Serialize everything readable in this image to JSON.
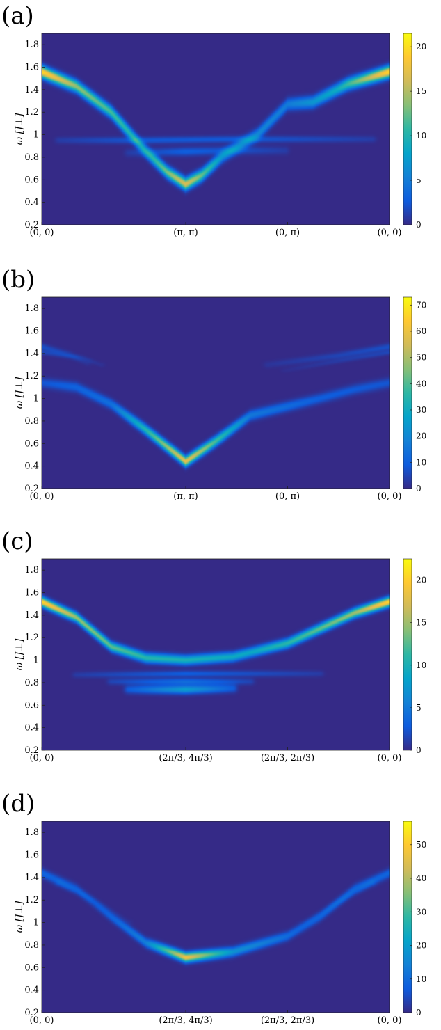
{
  "colormap": {
    "name": "parula",
    "stops": [
      "#352a87",
      "#0f5cdd",
      "#1481d6",
      "#06a4ca",
      "#2eb7a4",
      "#87bf77",
      "#d1bb59",
      "#fec832",
      "#f9fb0e"
    ]
  },
  "chart_data": [
    {
      "type": "heatmap",
      "panel_label": "(a)",
      "ylabel": "ω [J⊥]",
      "ylim": [
        0.2,
        1.9
      ],
      "yticks": [
        "0.2",
        "0.4",
        "0.6",
        "0.8",
        "1",
        "1.2",
        "1.4",
        "1.6",
        "1.8"
      ],
      "xticks": [
        {
          "label": "(0, 0)",
          "k": 0
        },
        {
          "label": "(π, π)",
          "k": 0.414
        },
        {
          "label": "(0, π)",
          "k": 0.707
        },
        {
          "label": "(0, 0)",
          "k": 1
        }
      ],
      "colorbar": {
        "range": [
          0,
          21.5
        ],
        "ticks": [
          0,
          5,
          10,
          15,
          20
        ]
      },
      "bands": [
        {
          "points": [
            [
              0,
              1.56
            ],
            [
              0.1,
              1.43
            ],
            [
              0.2,
              1.2
            ],
            [
              0.3,
              0.85
            ],
            [
              0.36,
              0.67
            ],
            [
              0.414,
              0.56
            ],
            [
              0.46,
              0.64
            ],
            [
              0.52,
              0.81
            ],
            [
              0.62,
              1.0
            ],
            [
              0.707,
              1.27
            ],
            [
              0.78,
              1.29
            ],
            [
              0.88,
              1.45
            ],
            [
              1,
              1.56
            ]
          ],
          "width": 0.035,
          "intensity": [
            [
              0,
              20
            ],
            [
              0.1,
              14
            ],
            [
              0.3,
              9
            ],
            [
              0.414,
              17
            ],
            [
              0.52,
              7
            ],
            [
              0.707,
              5
            ],
            [
              0.85,
              9
            ],
            [
              1,
              20
            ]
          ]
        },
        {
          "points": [
            [
              0.05,
              0.95
            ],
            [
              0.3,
              0.95
            ],
            [
              0.55,
              0.96
            ],
            [
              0.8,
              0.96
            ],
            [
              0.95,
              0.96
            ]
          ],
          "width": 0.02,
          "intensity": [
            [
              0.05,
              1
            ],
            [
              0.3,
              2.5
            ],
            [
              0.55,
              2.5
            ],
            [
              0.95,
              1
            ]
          ]
        },
        {
          "points": [
            [
              0.25,
              0.84
            ],
            [
              0.414,
              0.85
            ],
            [
              0.55,
              0.86
            ],
            [
              0.7,
              0.86
            ]
          ],
          "width": 0.025,
          "intensity": [
            [
              0.25,
              1
            ],
            [
              0.414,
              3
            ],
            [
              0.7,
              1
            ]
          ]
        }
      ]
    },
    {
      "type": "heatmap",
      "panel_label": "(b)",
      "ylabel": "ω [J⊥]",
      "ylim": [
        0.2,
        1.9
      ],
      "yticks": [
        "0.2",
        "0.4",
        "0.6",
        "0.8",
        "1",
        "1.2",
        "1.4",
        "1.6",
        "1.8"
      ],
      "xticks": [
        {
          "label": "(0, 0)",
          "k": 0
        },
        {
          "label": "(π, π)",
          "k": 0.414
        },
        {
          "label": "(0, π)",
          "k": 0.707
        },
        {
          "label": "(0, 0)",
          "k": 1
        }
      ],
      "colorbar": {
        "range": [
          0,
          73
        ],
        "ticks": [
          0,
          10,
          20,
          30,
          40,
          50,
          60,
          70
        ]
      },
      "bands": [
        {
          "points": [
            [
              0,
              1.14
            ],
            [
              0.1,
              1.1
            ],
            [
              0.2,
              0.95
            ],
            [
              0.3,
              0.72
            ],
            [
              0.414,
              0.44
            ],
            [
              0.5,
              0.62
            ],
            [
              0.6,
              0.85
            ],
            [
              0.707,
              0.93
            ],
            [
              0.8,
              1.0
            ],
            [
              0.9,
              1.08
            ],
            [
              1,
              1.14
            ]
          ],
          "width": 0.03,
          "intensity": [
            [
              0,
              8
            ],
            [
              0.2,
              14
            ],
            [
              0.414,
              60
            ],
            [
              0.6,
              16
            ],
            [
              0.8,
              10
            ],
            [
              1,
              8
            ]
          ]
        },
        {
          "points": [
            [
              0,
              1.46
            ],
            [
              0.08,
              1.39
            ],
            [
              0.13,
              1.32
            ]
          ],
          "width": 0.02,
          "intensity": [
            [
              0,
              7
            ],
            [
              0.13,
              2
            ]
          ]
        },
        {
          "points": [
            [
              0,
              1.41
            ],
            [
              0.12,
              1.36
            ],
            [
              0.17,
              1.3
            ]
          ],
          "width": 0.015,
          "intensity": [
            [
              0,
              5
            ],
            [
              0.17,
              1.5
            ]
          ]
        },
        {
          "points": [
            [
              0.65,
              1.3
            ],
            [
              0.85,
              1.38
            ],
            [
              1,
              1.46
            ]
          ],
          "width": 0.02,
          "intensity": [
            [
              0.65,
              2
            ],
            [
              1,
              7
            ]
          ]
        },
        {
          "points": [
            [
              0.7,
              1.25
            ],
            [
              0.9,
              1.36
            ],
            [
              1,
              1.41
            ]
          ],
          "width": 0.015,
          "intensity": [
            [
              0.7,
              1
            ],
            [
              1,
              5
            ]
          ]
        }
      ]
    },
    {
      "type": "heatmap",
      "panel_label": "(c)",
      "ylabel": "ω [J⊥]",
      "ylim": [
        0.2,
        1.9
      ],
      "yticks": [
        "0.2",
        "0.4",
        "0.6",
        "0.8",
        "1",
        "1.2",
        "1.4",
        "1.6",
        "1.8"
      ],
      "xticks": [
        {
          "label": "(0, 0)",
          "k": 0
        },
        {
          "label": "(2π/3, 4π/3)",
          "k": 0.414
        },
        {
          "label": "(2π/3, 2π/3)",
          "k": 0.707
        },
        {
          "label": "(0, 0)",
          "k": 1
        }
      ],
      "colorbar": {
        "range": [
          0,
          22.5
        ],
        "ticks": [
          0,
          5,
          10,
          15,
          20
        ]
      },
      "bands": [
        {
          "points": [
            [
              0,
              1.52
            ],
            [
              0.1,
              1.38
            ],
            [
              0.2,
              1.12
            ],
            [
              0.3,
              1.02
            ],
            [
              0.414,
              1.0
            ],
            [
              0.55,
              1.03
            ],
            [
              0.707,
              1.15
            ],
            [
              0.8,
              1.28
            ],
            [
              0.9,
              1.42
            ],
            [
              1,
              1.52
            ]
          ],
          "width": 0.028,
          "intensity": [
            [
              0,
              21
            ],
            [
              0.1,
              15
            ],
            [
              0.3,
              11
            ],
            [
              0.6,
              9
            ],
            [
              0.9,
              15
            ],
            [
              1,
              21
            ]
          ]
        },
        {
          "points": [
            [
              0.25,
              0.74
            ],
            [
              0.414,
              0.74
            ],
            [
              0.55,
              0.75
            ]
          ],
          "width": 0.025,
          "intensity": [
            [
              0.25,
              3
            ],
            [
              0.414,
              8
            ],
            [
              0.55,
              3
            ]
          ]
        },
        {
          "points": [
            [
              0.2,
              0.81
            ],
            [
              0.414,
              0.81
            ],
            [
              0.6,
              0.81
            ]
          ],
          "width": 0.02,
          "intensity": [
            [
              0.2,
              1.5
            ],
            [
              0.414,
              4
            ],
            [
              0.6,
              1.5
            ]
          ]
        },
        {
          "points": [
            [
              0.1,
              0.87
            ],
            [
              0.414,
              0.88
            ],
            [
              0.8,
              0.88
            ]
          ],
          "width": 0.018,
          "intensity": [
            [
              0.1,
              1
            ],
            [
              0.414,
              3
            ],
            [
              0.8,
              1
            ]
          ]
        }
      ]
    },
    {
      "type": "heatmap",
      "panel_label": "(d)",
      "ylabel": "ω [J⊥]",
      "ylim": [
        0.2,
        1.9
      ],
      "yticks": [
        "0.2",
        "0.4",
        "0.6",
        "0.8",
        "1",
        "1.2",
        "1.4",
        "1.6",
        "1.8"
      ],
      "xticks": [
        {
          "label": "(0, 0)",
          "k": 0
        },
        {
          "label": "(2π/3, 4π/3)",
          "k": 0.414
        },
        {
          "label": "(2π/3, 2π/3)",
          "k": 0.707
        },
        {
          "label": "(0, 0)",
          "k": 1
        }
      ],
      "colorbar": {
        "range": [
          0,
          57
        ],
        "ticks": [
          0,
          10,
          20,
          30,
          40,
          50
        ]
      },
      "bands": [
        {
          "points": [
            [
              0,
              1.44
            ],
            [
              0.1,
              1.3
            ],
            [
              0.2,
              1.05
            ],
            [
              0.3,
              0.82
            ],
            [
              0.414,
              0.69
            ],
            [
              0.55,
              0.74
            ],
            [
              0.707,
              0.88
            ],
            [
              0.8,
              1.05
            ],
            [
              0.9,
              1.3
            ],
            [
              1,
              1.44
            ]
          ],
          "width": 0.028,
          "intensity": [
            [
              0,
              9
            ],
            [
              0.15,
              6
            ],
            [
              0.3,
              14
            ],
            [
              0.414,
              48
            ],
            [
              0.55,
              18
            ],
            [
              0.75,
              8
            ],
            [
              1,
              9
            ]
          ]
        },
        {
          "points": [
            [
              0.05,
              1.35
            ],
            [
              0.15,
              1.2
            ],
            [
              0.25,
              1.0
            ]
          ],
          "width": 0.02,
          "intensity": [
            [
              0.05,
              3
            ],
            [
              0.25,
              1
            ]
          ]
        },
        {
          "points": [
            [
              0.75,
              0.98
            ],
            [
              0.85,
              1.18
            ],
            [
              0.95,
              1.35
            ]
          ],
          "width": 0.02,
          "intensity": [
            [
              0.75,
              1
            ],
            [
              0.95,
              3
            ]
          ]
        }
      ]
    }
  ]
}
